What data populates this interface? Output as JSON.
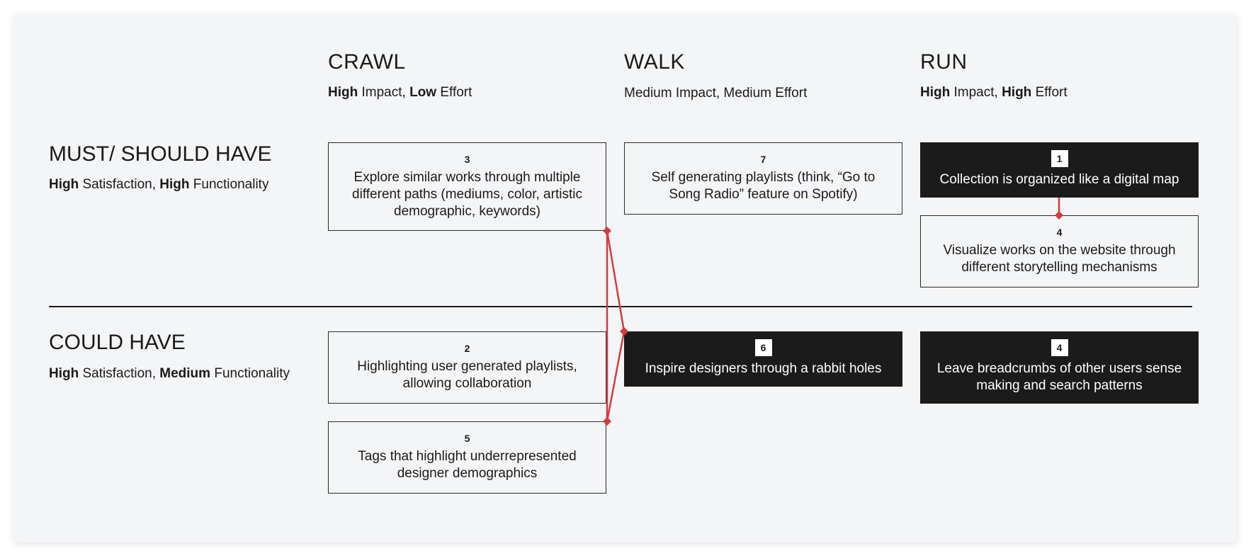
{
  "columns": [
    {
      "title": "CRAWL",
      "sub_parts": [
        {
          "text": "High",
          "bold": true
        },
        {
          "text": " Impact, ",
          "bold": false
        },
        {
          "text": "Low",
          "bold": true
        },
        {
          "text": " Effort",
          "bold": false
        }
      ]
    },
    {
      "title": "WALK",
      "sub_parts": [
        {
          "text": "Medium Impact, Medium Effort",
          "bold": false
        }
      ]
    },
    {
      "title": "RUN",
      "sub_parts": [
        {
          "text": "High",
          "bold": true
        },
        {
          "text": " Impact, ",
          "bold": false
        },
        {
          "text": "High",
          "bold": true
        },
        {
          "text": " Effort",
          "bold": false
        }
      ]
    }
  ],
  "rows": [
    {
      "title": "MUST/ SHOULD HAVE",
      "sub_parts": [
        {
          "text": "High",
          "bold": true
        },
        {
          "text": " Satisfaction, ",
          "bold": false
        },
        {
          "text": "High",
          "bold": true
        },
        {
          "text": " Functionality",
          "bold": false
        }
      ]
    },
    {
      "title": "COULD HAVE",
      "sub_parts": [
        {
          "text": "High",
          "bold": true
        },
        {
          "text": " Satisfaction, ",
          "bold": false
        },
        {
          "text": "Medium",
          "bold": true
        },
        {
          "text": " Functionality",
          "bold": false
        }
      ]
    }
  ],
  "cards": {
    "c3": {
      "number": "3",
      "text": "Explore similar works through multiple different paths (mediums, color, artistic demographic, keywords)",
      "dark": false
    },
    "c7": {
      "number": "7",
      "text": "Self generating playlists (think, “Go to Song Radio” feature on Spotify)",
      "dark": false
    },
    "c1": {
      "number": "1",
      "text": "Collection is organized like a digital map",
      "dark": true
    },
    "c4a": {
      "number": "4",
      "text": "Visualize works on the website through different storytelling mechanisms",
      "dark": false
    },
    "c2": {
      "number": "2",
      "text": "Highlighting user generated playlists, allowing collaboration",
      "dark": false
    },
    "c6": {
      "number": "6",
      "text": "Inspire designers through a rabbit holes",
      "dark": true
    },
    "c4b": {
      "number": "4",
      "text": "Leave breadcrumbs of other users sense making and search patterns",
      "dark": true
    },
    "c5": {
      "number": "5",
      "text": "Tags that highlight underrepresented designer demographics",
      "dark": false
    }
  },
  "colors": {
    "connector": "#d63a3a",
    "dark_card": "#1b1b1b",
    "panel": "#f4f5f7"
  }
}
